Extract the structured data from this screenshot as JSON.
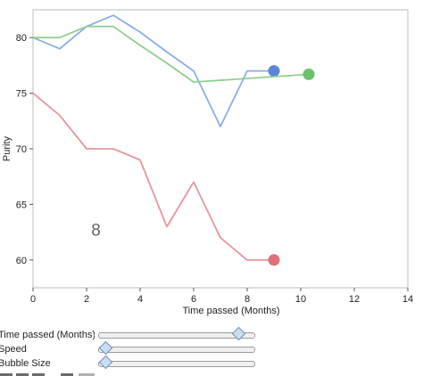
{
  "chart_data": {
    "type": "line",
    "xlabel": "Time passed (Months)",
    "ylabel": "Purity",
    "xlim": [
      0,
      14
    ],
    "ylim": [
      57.5,
      82.5
    ],
    "xticks": [
      0,
      2,
      4,
      6,
      8,
      10,
      12,
      14
    ],
    "yticks": [
      60,
      65,
      70,
      75,
      80
    ],
    "frame_label": "8",
    "series": [
      {
        "color": "#8aaee8",
        "marker_color": "#5b85d8",
        "x": [
          0,
          1,
          2,
          3,
          4,
          5,
          6,
          7,
          8,
          9
        ],
        "y": [
          80,
          79,
          81,
          82,
          80.5,
          78.7,
          77,
          72,
          77,
          77
        ]
      },
      {
        "color": "#8fd08f",
        "marker_color": "#6cc26c",
        "x": [
          0,
          1,
          2,
          3,
          4,
          5,
          6,
          10.3
        ],
        "y": [
          80,
          80,
          81,
          81,
          79.3,
          77.7,
          76,
          76.7
        ]
      },
      {
        "color": "#e8959e",
        "marker_color": "#e0707a",
        "x": [
          0,
          1,
          2,
          3,
          4,
          5,
          6,
          7,
          8,
          9
        ],
        "y": [
          75,
          73,
          70,
          70,
          69,
          63,
          67,
          62,
          60,
          60
        ]
      }
    ]
  },
  "controls": [
    {
      "label": "Time passed (Months)",
      "value": 0.895
    },
    {
      "label": "Speed",
      "value": 0.04
    },
    {
      "label": "Bubble Size",
      "value": 0.04
    }
  ]
}
